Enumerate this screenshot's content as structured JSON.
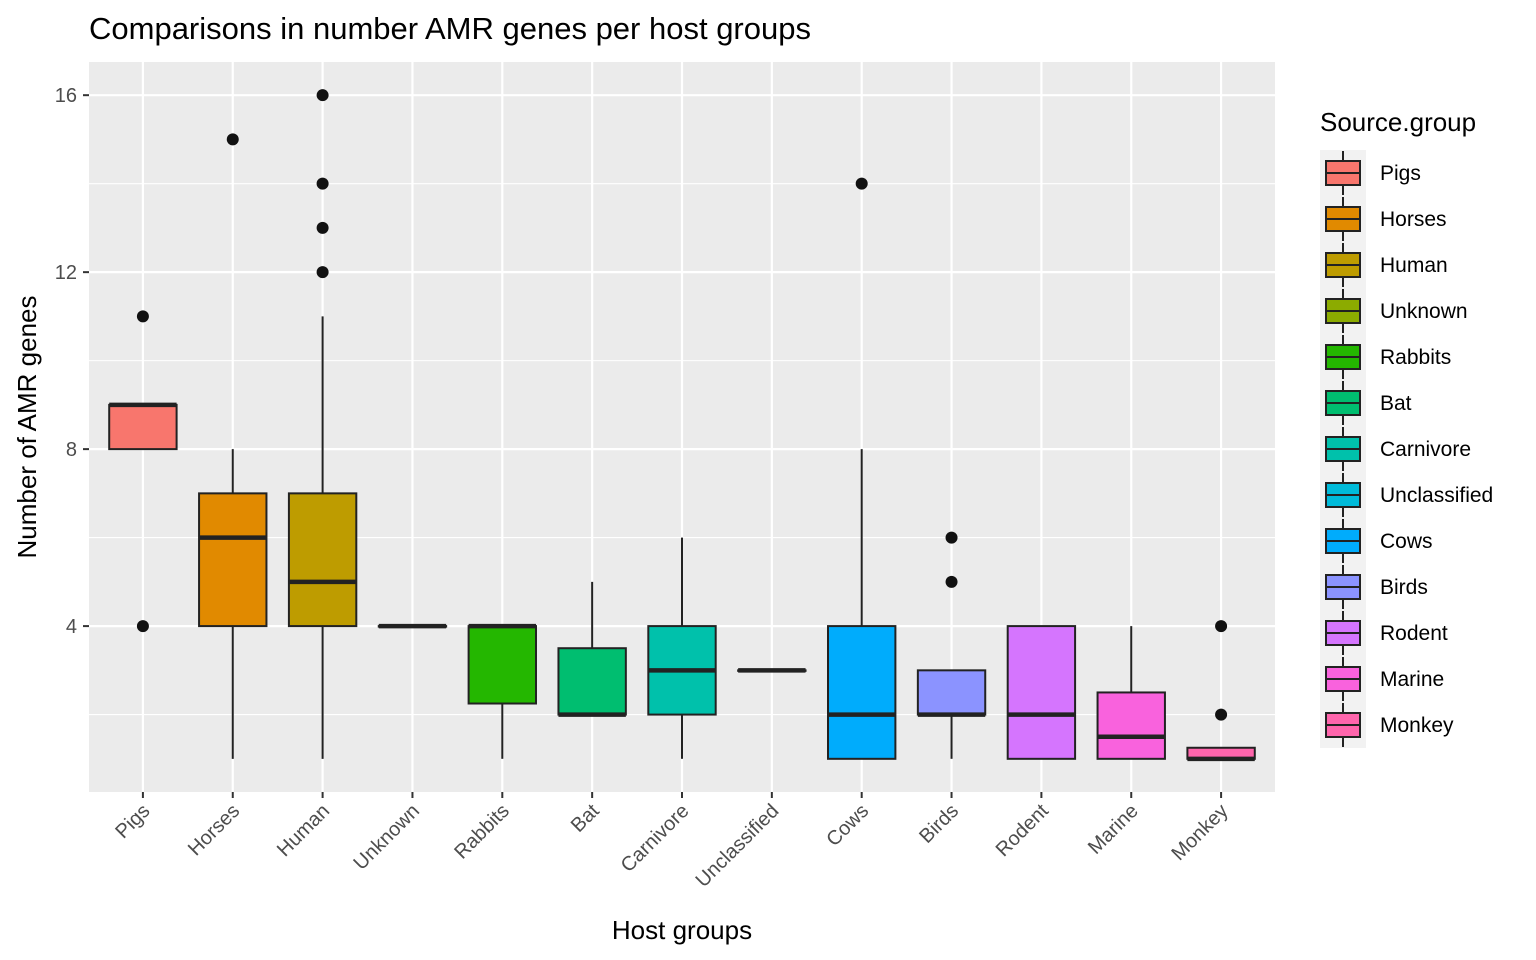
{
  "chart_data": {
    "type": "boxplot",
    "title": "Comparisons in number AMR genes per host groups",
    "xlabel": "Host groups",
    "ylabel": "Number of AMR genes",
    "ylim": [
      0.25,
      16.75
    ],
    "yticks": [
      4,
      8,
      12,
      16
    ],
    "ytick_labels": [
      "4",
      "8",
      "12",
      "16"
    ],
    "grid": true,
    "legend": {
      "title": "Source.group",
      "position": "right"
    },
    "categories": [
      "Pigs",
      "Horses",
      "Human",
      "Unknown",
      "Rabbits",
      "Bat",
      "Carnivore",
      "Unclassified",
      "Cows",
      "Birds",
      "Rodent",
      "Marine",
      "Monkey"
    ],
    "colors": [
      "#F8766D",
      "#E18A00",
      "#BE9C00",
      "#8CAB00",
      "#24B700",
      "#00BE70",
      "#00C1AB",
      "#00BBDA",
      "#00ACFC",
      "#8B93FF",
      "#D575FE",
      "#F962DD",
      "#FF65AC"
    ],
    "boxes": [
      {
        "group": "Pigs",
        "whisker_low": 8,
        "q1": 8,
        "median": 9,
        "q3": 9,
        "whisker_high": 9,
        "outliers": [
          11,
          4
        ]
      },
      {
        "group": "Horses",
        "whisker_low": 1,
        "q1": 4,
        "median": 6,
        "q3": 7,
        "whisker_high": 8,
        "outliers": [
          15
        ]
      },
      {
        "group": "Human",
        "whisker_low": 1,
        "q1": 4,
        "median": 5,
        "q3": 7,
        "whisker_high": 11,
        "outliers": [
          16,
          14,
          13,
          12
        ]
      },
      {
        "group": "Unknown",
        "whisker_low": 4,
        "q1": 4,
        "median": 4,
        "q3": 4,
        "whisker_high": 4,
        "outliers": []
      },
      {
        "group": "Rabbits",
        "whisker_low": 1,
        "q1": 2.25,
        "median": 4,
        "q3": 4,
        "whisker_high": 4,
        "outliers": []
      },
      {
        "group": "Bat",
        "whisker_low": 2,
        "q1": 2,
        "median": 2,
        "q3": 3.5,
        "whisker_high": 5,
        "outliers": []
      },
      {
        "group": "Carnivore",
        "whisker_low": 1,
        "q1": 2,
        "median": 3,
        "q3": 4,
        "whisker_high": 6,
        "outliers": []
      },
      {
        "group": "Unclassified",
        "whisker_low": 3,
        "q1": 3,
        "median": 3,
        "q3": 3,
        "whisker_high": 3,
        "outliers": []
      },
      {
        "group": "Cows",
        "whisker_low": 1,
        "q1": 1,
        "median": 2,
        "q3": 4,
        "whisker_high": 8,
        "outliers": [
          14
        ]
      },
      {
        "group": "Birds",
        "whisker_low": 1,
        "q1": 2,
        "median": 2,
        "q3": 3,
        "whisker_high": 3,
        "outliers": [
          6,
          5
        ]
      },
      {
        "group": "Rodent",
        "whisker_low": 1,
        "q1": 1,
        "median": 2,
        "q3": 4,
        "whisker_high": 4,
        "outliers": []
      },
      {
        "group": "Marine",
        "whisker_low": 1,
        "q1": 1,
        "median": 1.5,
        "q3": 2.5,
        "whisker_high": 4,
        "outliers": []
      },
      {
        "group": "Monkey",
        "whisker_low": 1,
        "q1": 1,
        "median": 1,
        "q3": 1.25,
        "whisker_high": 1.25,
        "outliers": [
          4,
          2
        ]
      }
    ]
  }
}
